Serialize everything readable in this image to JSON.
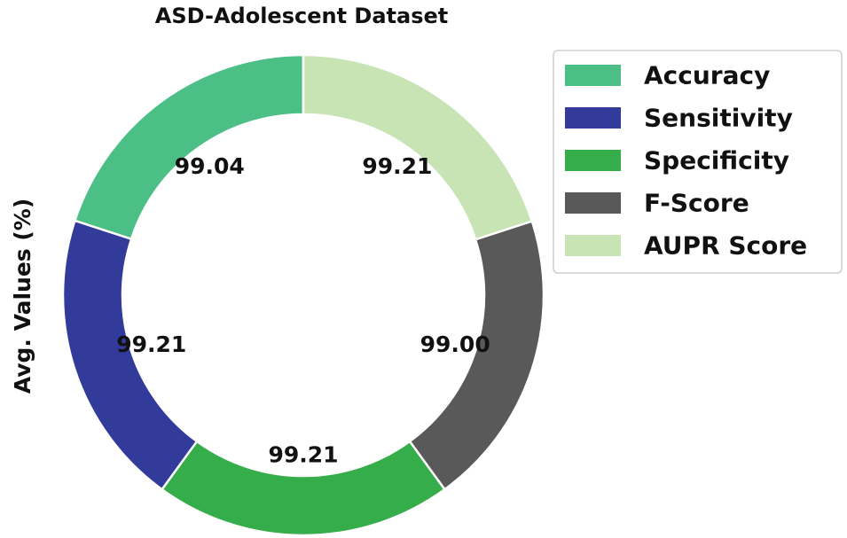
{
  "chart_data": {
    "type": "pie",
    "title": "ASD-Adolescent Dataset",
    "ylabel": "Avg. Values (%)",
    "donut": true,
    "legend_position": "top-right",
    "categories": [
      "Accuracy",
      "Sensitivity",
      "Specificity",
      "F-Score",
      "AUPR Score"
    ],
    "values": [
      99.04,
      99.21,
      99.21,
      99.0,
      99.21
    ],
    "value_labels": [
      "99.04",
      "99.21",
      "99.21",
      "99.00",
      "99.21"
    ],
    "colors": [
      "#4cbf86",
      "#323a9a",
      "#34ad4a",
      "#595959",
      "#c8e4b4"
    ]
  }
}
